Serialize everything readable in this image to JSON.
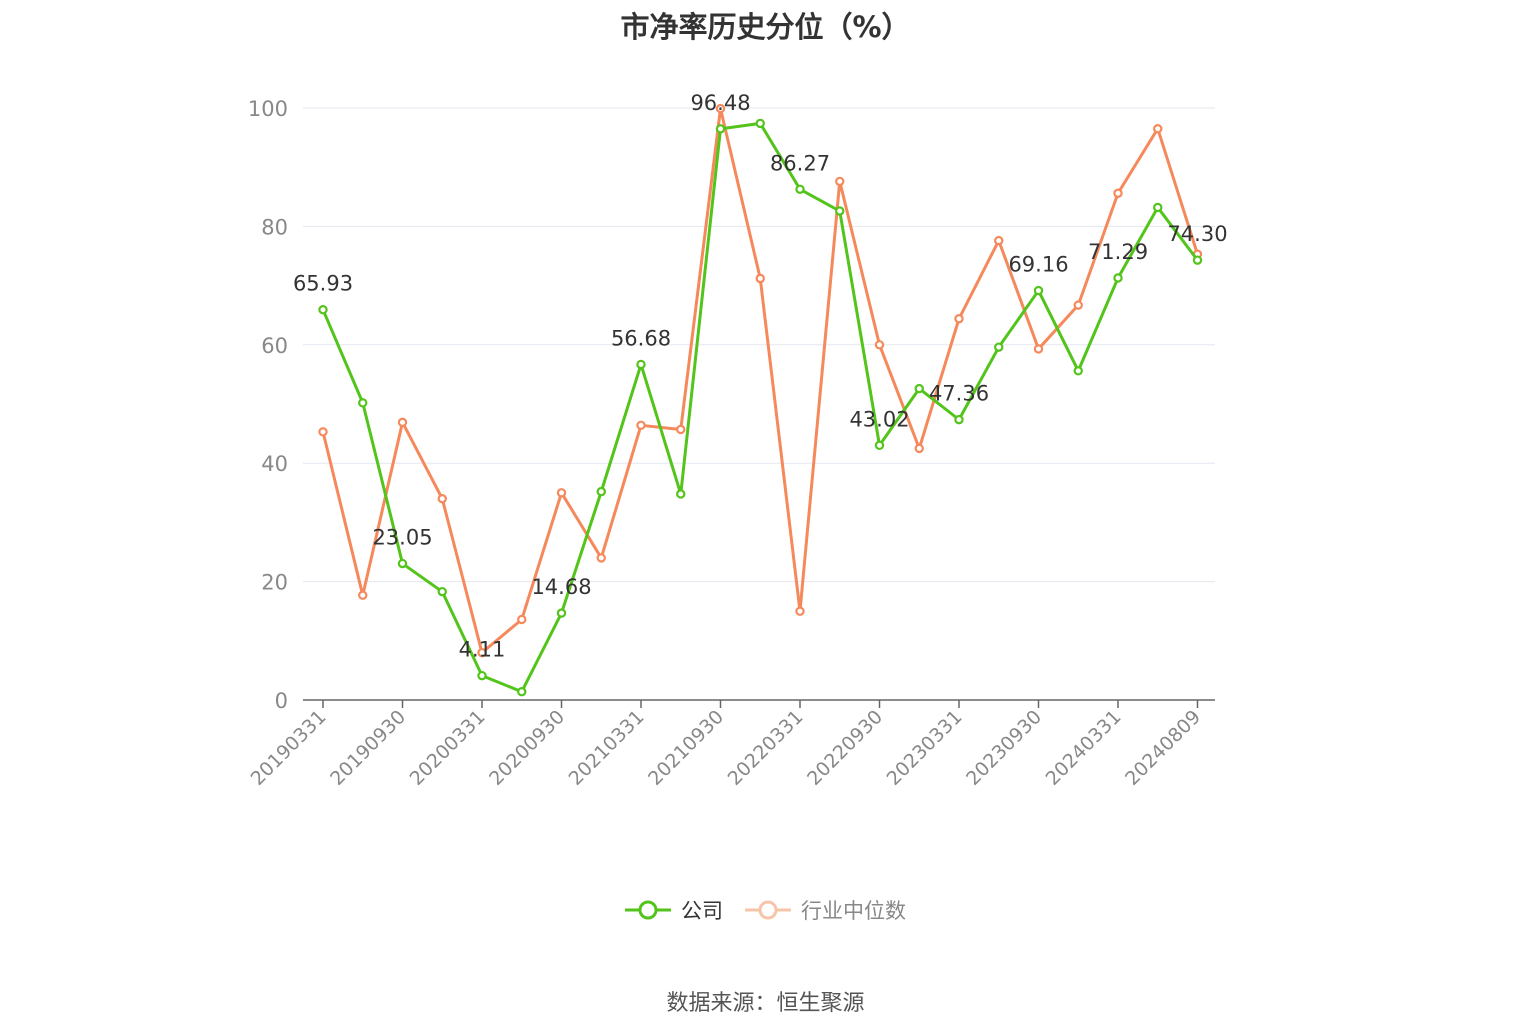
{
  "title": "市净率历史分位（%）",
  "source_note": "数据来源：恒生聚源",
  "colors": {
    "company": "#52c41a",
    "industry": "#f5895b",
    "grid": "#e4e7ef",
    "axis": "#666666"
  },
  "chart_data": {
    "type": "line",
    "title": "市净率历史分位（%）",
    "ylim": [
      0,
      100
    ],
    "yticks": [
      0,
      20,
      40,
      60,
      80,
      100
    ],
    "grid": true,
    "legend_position": "bottom",
    "x_ticks": [
      "20190331",
      "20190930",
      "20200331",
      "20200930",
      "20210331",
      "20210930",
      "20220331",
      "20220930",
      "20230331",
      "20230930",
      "20240331",
      "20240809"
    ],
    "x": [
      "20190331",
      "20190630",
      "20190930",
      "20191231",
      "20200331",
      "20200630",
      "20200930",
      "20201231",
      "20210331",
      "20210630",
      "20210930",
      "20211231",
      "20220331",
      "20220630",
      "20220930",
      "20221231",
      "20230331",
      "20230630",
      "20230930",
      "20231231",
      "20240331",
      "20240630",
      "20240809"
    ],
    "series": [
      {
        "name": "公司",
        "values": [
          65.93,
          50.2,
          23.05,
          18.3,
          4.11,
          1.4,
          14.68,
          35.2,
          56.68,
          34.8,
          96.48,
          97.4,
          86.27,
          82.6,
          43.02,
          52.6,
          47.36,
          59.6,
          69.16,
          55.6,
          71.29,
          83.2,
          74.3
        ],
        "labels": [
          "65.93",
          "",
          "23.05",
          "",
          "4.11",
          "",
          "14.68",
          "",
          "56.68",
          "",
          "96.48",
          "",
          "86.27",
          "",
          "43.02",
          "",
          "47.36",
          "",
          "69.16",
          "",
          "71.29",
          "",
          "74.30"
        ]
      },
      {
        "name": "行业中位数",
        "values": [
          45.3,
          17.7,
          46.9,
          34.0,
          8.0,
          13.6,
          35.0,
          24.0,
          46.4,
          45.7,
          99.9,
          71.2,
          15.0,
          87.6,
          60.0,
          42.5,
          64.4,
          77.6,
          59.3,
          66.7,
          85.6,
          96.5,
          75.3
        ]
      }
    ]
  }
}
